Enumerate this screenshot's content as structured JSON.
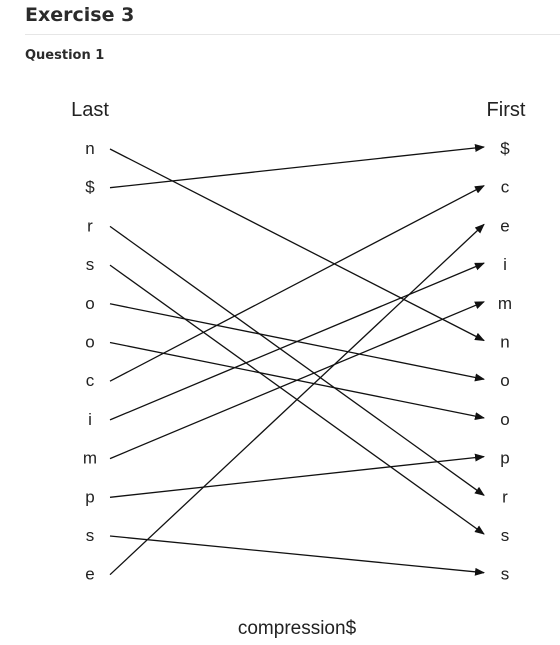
{
  "exercise_title": "Exercise 3",
  "question_title": "Question 1",
  "diagram": {
    "last_header": "Last",
    "first_header": "First",
    "last_column": [
      "n",
      "$",
      "r",
      "s",
      "o",
      "o",
      "c",
      "i",
      "m",
      "p",
      "s",
      "e"
    ],
    "first_column": [
      "$",
      "c",
      "e",
      "i",
      "m",
      "n",
      "o",
      "o",
      "p",
      "r",
      "s",
      "s"
    ],
    "mapping": [
      5,
      0,
      9,
      10,
      6,
      7,
      1,
      3,
      4,
      8,
      11,
      2
    ],
    "caption": "compression$"
  }
}
